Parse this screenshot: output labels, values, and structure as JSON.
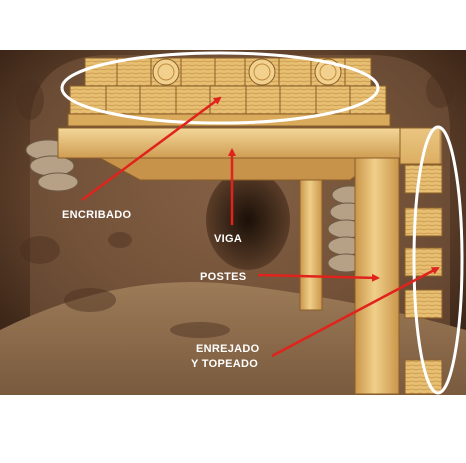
{
  "labels": {
    "encribado": "ENCRIBADO",
    "viga": "VIGA",
    "postes": "POSTES",
    "enrejado_line1": "ENREJADO",
    "enrejado_line2": "Y TOPEADO"
  },
  "colors": {
    "rock_dark": "#3a2416",
    "rock_mid": "#6b4a33",
    "floor": "#8a6a4c",
    "wood_light": "#f0cf8a",
    "wood_mid": "#dcae5e",
    "wood_dark": "#b98a3e",
    "arrow": "#e0231c",
    "ellipse": "#ffffff"
  }
}
